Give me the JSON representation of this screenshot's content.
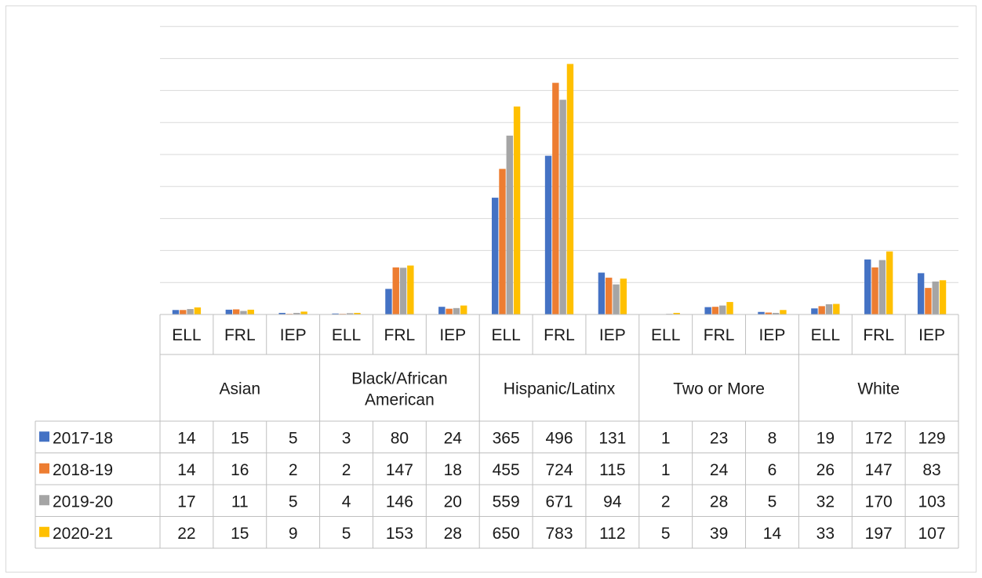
{
  "chart_data": {
    "type": "bar",
    "title": "",
    "xlabel": "",
    "ylabel": "",
    "ylim": [
      0,
      900
    ],
    "grid": true,
    "legend_position": "data-table-left",
    "groups": [
      "Asian",
      "Black/African American",
      "Hispanic/Latinx",
      "Two or More",
      "White"
    ],
    "subcategories": [
      "ELL",
      "FRL",
      "IEP"
    ],
    "categories": [
      "Asian ELL",
      "Asian FRL",
      "Asian IEP",
      "Black/African American ELL",
      "Black/African American FRL",
      "Black/African American IEP",
      "Hispanic/Latinx ELL",
      "Hispanic/Latinx FRL",
      "Hispanic/Latinx IEP",
      "Two or More ELL",
      "Two or More FRL",
      "Two or More IEP",
      "White ELL",
      "White FRL",
      "White IEP"
    ],
    "series": [
      {
        "name": "2017-18",
        "color": "#4472C4",
        "values": [
          14,
          15,
          5,
          3,
          80,
          24,
          365,
          496,
          131,
          1,
          23,
          8,
          19,
          172,
          129
        ]
      },
      {
        "name": "2018-19",
        "color": "#ED7D31",
        "values": [
          14,
          16,
          2,
          2,
          147,
          18,
          455,
          724,
          115,
          1,
          24,
          6,
          26,
          147,
          83
        ]
      },
      {
        "name": "2019-20",
        "color": "#A5A5A5",
        "values": [
          17,
          11,
          5,
          4,
          146,
          20,
          559,
          671,
          94,
          2,
          28,
          5,
          32,
          170,
          103
        ]
      },
      {
        "name": "2020-21",
        "color": "#FFC000",
        "values": [
          22,
          15,
          9,
          5,
          153,
          28,
          650,
          783,
          112,
          5,
          39,
          14,
          33,
          197,
          107
        ]
      }
    ]
  }
}
